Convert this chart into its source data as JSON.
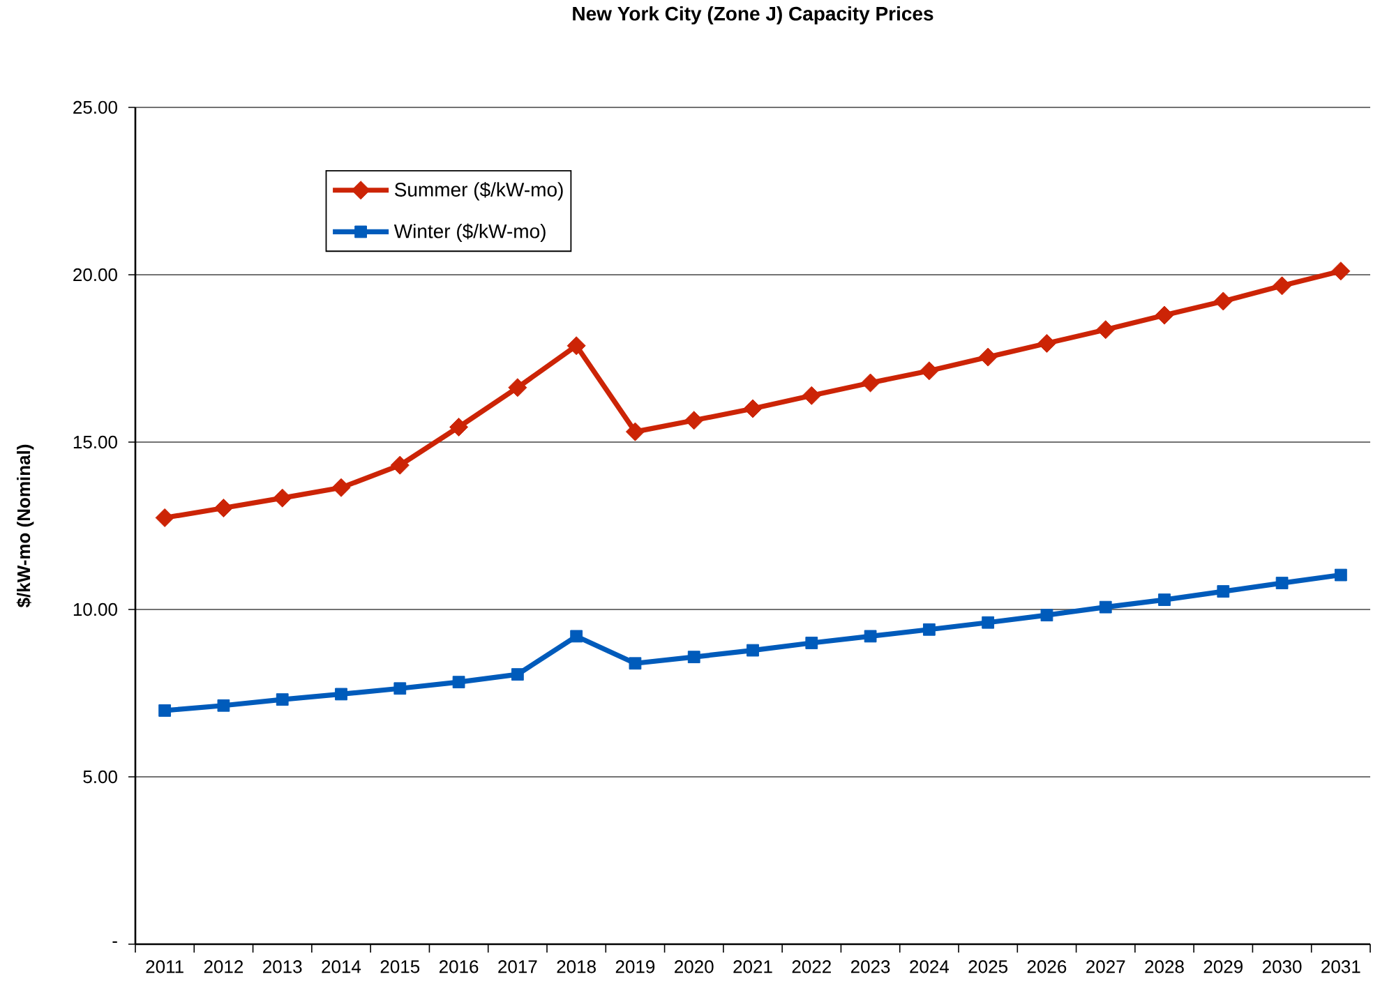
{
  "chart_data": {
    "type": "line",
    "title": "New York City (Zone J) Capacity Prices",
    "ylabel": "$/kW-mo (Nominal)",
    "categories": [
      "2011",
      "2012",
      "2013",
      "2014",
      "2015",
      "2016",
      "2017",
      "2018",
      "2019",
      "2020",
      "2021",
      "2022",
      "2023",
      "2024",
      "2025",
      "2026",
      "2027",
      "2028",
      "2029",
      "2030",
      "2031"
    ],
    "series": [
      {
        "name": "Summer ($/kW-mo)",
        "color": "#cc2406",
        "marker": "diamond",
        "values": [
          12.74,
          13.03,
          13.33,
          13.64,
          14.31,
          15.45,
          16.63,
          17.88,
          15.31,
          15.65,
          16.0,
          16.39,
          16.77,
          17.13,
          17.54,
          17.95,
          18.36,
          18.79,
          19.21,
          19.67,
          20.11
        ]
      },
      {
        "name": "Winter ($/kW-mo)",
        "color": "#005bbb",
        "marker": "square",
        "values": [
          6.98,
          7.13,
          7.31,
          7.47,
          7.64,
          7.83,
          8.06,
          9.2,
          8.39,
          8.58,
          8.78,
          9.0,
          9.2,
          9.4,
          9.61,
          9.83,
          10.07,
          10.29,
          10.54,
          10.79,
          11.03
        ]
      }
    ],
    "ylim": [
      0,
      25
    ],
    "yticks": [
      {
        "value": 0,
        "label": "-"
      },
      {
        "value": 5,
        "label": "5.00"
      },
      {
        "value": 10,
        "label": "10.00"
      },
      {
        "value": 15,
        "label": "15.00"
      },
      {
        "value": 20,
        "label": "20.00"
      },
      {
        "value": 25,
        "label": "25.00"
      }
    ],
    "grid": "y",
    "legend": "top left",
    "line_style": "solid"
  }
}
